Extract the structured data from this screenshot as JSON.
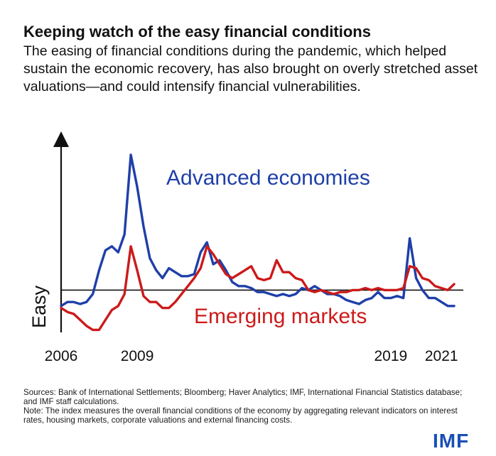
{
  "header": {
    "title": "Keeping watch of the easy financial conditions",
    "subtitle": "The easing of financial conditions during the pandemic, which helped sustain the economic recovery, has also brought on overly stretched asset valuations—and could intensify financial vulnerabilities."
  },
  "chart_data": {
    "type": "line",
    "title": "Keeping watch of the easy financial conditions",
    "ylabel": "Easy",
    "xlabel": "",
    "xlim": [
      2006,
      2021.75
    ],
    "ylim": [
      -1.1,
      3.9
    ],
    "baseline": 0,
    "x_ticks": [
      2006,
      2009,
      2019,
      2021
    ],
    "x_tick_labels": [
      "2006",
      "2009",
      "2019",
      "2021"
    ],
    "series": [
      {
        "name": "Advanced economies",
        "color": "#1f3fa8",
        "x": [
          2006.0,
          2006.25,
          2006.5,
          2006.75,
          2007.0,
          2007.25,
          2007.5,
          2007.75,
          2008.0,
          2008.25,
          2008.5,
          2008.75,
          2009.0,
          2009.25,
          2009.5,
          2009.75,
          2010.0,
          2010.25,
          2010.5,
          2010.75,
          2011.0,
          2011.25,
          2011.5,
          2011.75,
          2012.0,
          2012.25,
          2012.5,
          2012.75,
          2013.0,
          2013.25,
          2013.5,
          2013.75,
          2014.0,
          2014.25,
          2014.5,
          2014.75,
          2015.0,
          2015.25,
          2015.5,
          2015.75,
          2016.0,
          2016.25,
          2016.5,
          2016.75,
          2017.0,
          2017.25,
          2017.5,
          2017.75,
          2018.0,
          2018.25,
          2018.5,
          2018.75,
          2019.0,
          2019.25,
          2019.5,
          2019.75,
          2020.0,
          2020.25,
          2020.5,
          2020.75,
          2021.0,
          2021.25,
          2021.5
        ],
        "values": [
          -0.4,
          -0.3,
          -0.3,
          -0.35,
          -0.3,
          -0.1,
          0.5,
          1.0,
          1.1,
          0.95,
          1.4,
          3.4,
          2.6,
          1.6,
          0.8,
          0.5,
          0.3,
          0.55,
          0.45,
          0.35,
          0.35,
          0.4,
          0.95,
          1.2,
          0.65,
          0.75,
          0.5,
          0.2,
          0.1,
          0.1,
          0.05,
          -0.05,
          -0.05,
          -0.1,
          -0.15,
          -0.1,
          -0.15,
          -0.1,
          0.05,
          0.0,
          0.1,
          0.0,
          -0.1,
          -0.1,
          -0.15,
          -0.25,
          -0.3,
          -0.35,
          -0.25,
          -0.2,
          -0.05,
          -0.2,
          -0.2,
          -0.15,
          -0.2,
          1.3,
          0.3,
          0.0,
          -0.2,
          -0.2,
          -0.3,
          -0.4,
          -0.4
        ]
      },
      {
        "name": "Emerging markets",
        "color": "#cc1a1a",
        "x": [
          2006.0,
          2006.25,
          2006.5,
          2006.75,
          2007.0,
          2007.25,
          2007.5,
          2007.75,
          2008.0,
          2008.25,
          2008.5,
          2008.75,
          2009.0,
          2009.25,
          2009.5,
          2009.75,
          2010.0,
          2010.25,
          2010.5,
          2010.75,
          2011.0,
          2011.25,
          2011.5,
          2011.75,
          2012.0,
          2012.25,
          2012.5,
          2012.75,
          2013.0,
          2013.25,
          2013.5,
          2013.75,
          2014.0,
          2014.25,
          2014.5,
          2014.75,
          2015.0,
          2015.25,
          2015.5,
          2015.75,
          2016.0,
          2016.25,
          2016.5,
          2016.75,
          2017.0,
          2017.25,
          2017.5,
          2017.75,
          2018.0,
          2018.25,
          2018.5,
          2018.75,
          2019.0,
          2019.25,
          2019.5,
          2019.75,
          2020.0,
          2020.25,
          2020.5,
          2020.75,
          2021.0,
          2021.25,
          2021.5
        ],
        "values": [
          -0.45,
          -0.55,
          -0.6,
          -0.75,
          -0.9,
          -1.0,
          -1.0,
          -0.75,
          -0.5,
          -0.4,
          -0.1,
          1.1,
          0.5,
          -0.15,
          -0.3,
          -0.3,
          -0.45,
          -0.45,
          -0.3,
          -0.1,
          0.1,
          0.3,
          0.55,
          1.1,
          0.9,
          0.65,
          0.4,
          0.3,
          0.4,
          0.5,
          0.6,
          0.3,
          0.25,
          0.3,
          0.75,
          0.45,
          0.45,
          0.3,
          0.25,
          0.0,
          -0.05,
          0.0,
          -0.05,
          -0.1,
          -0.05,
          -0.05,
          0.0,
          0.0,
          0.05,
          0.0,
          0.05,
          0.0,
          0.0,
          0.0,
          0.05,
          0.6,
          0.55,
          0.3,
          0.25,
          0.1,
          0.05,
          0.0,
          0.15
        ]
      }
    ],
    "annotations": [
      {
        "text": "Advanced economies",
        "series": "Advanced economies"
      },
      {
        "text": "Emerging markets",
        "series": "Emerging markets"
      }
    ]
  },
  "footer": {
    "sources": "Sources: Bank of International Settlements; Bloomberg; Haver Analytics; IMF, International Financial Statistics database; and IMF staff calculations.",
    "note": "Note: The index measures the overall financial conditions of the economy by aggregating relevant indicators on interest rates, housing markets, corporate valuations and external financing costs.",
    "logo": "IMF"
  }
}
